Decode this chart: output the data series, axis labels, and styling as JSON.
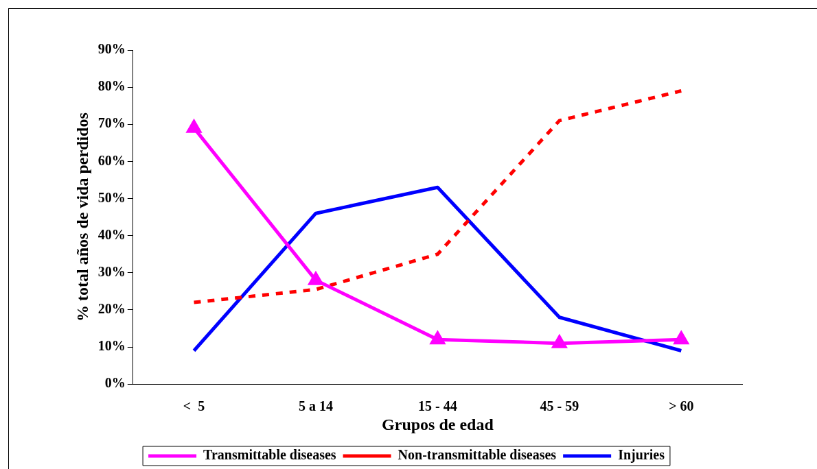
{
  "chart_data": {
    "type": "line",
    "xlabel": "Grupos de edad",
    "ylabel": "% total años de vida perdidos",
    "categories": [
      "<  5",
      "5 a 14",
      "15 - 44",
      "45 - 59",
      "> 60"
    ],
    "series": [
      {
        "name": "Transmittable diseases",
        "color": "#ff00ff",
        "marker": "triangle",
        "line_style": "solid",
        "values": [
          69,
          28,
          12,
          11,
          12
        ]
      },
      {
        "name": "Non-transmittable diseases",
        "color": "#ff0000",
        "marker": "none",
        "line_style": "dashed",
        "values": [
          22,
          25.5,
          35,
          71,
          79
        ]
      },
      {
        "name": "Injuries",
        "color": "#0000ff",
        "marker": "none",
        "line_style": "solid",
        "values": [
          9,
          46,
          53,
          18,
          9
        ]
      }
    ],
    "ylim": [
      0,
      90
    ],
    "yticks": [
      {
        "value": 0,
        "label": "0%"
      },
      {
        "value": 10,
        "label": "10%"
      },
      {
        "value": 20,
        "label": "20%"
      },
      {
        "value": 30,
        "label": "30%"
      },
      {
        "value": 40,
        "label": "40%"
      },
      {
        "value": 50,
        "label": "50%"
      },
      {
        "value": 60,
        "label": "60%"
      },
      {
        "value": 70,
        "label": "70%"
      },
      {
        "value": 80,
        "label": "80%"
      },
      {
        "value": 90,
        "label": "90%"
      }
    ],
    "grid": false,
    "legend": "bottom"
  }
}
